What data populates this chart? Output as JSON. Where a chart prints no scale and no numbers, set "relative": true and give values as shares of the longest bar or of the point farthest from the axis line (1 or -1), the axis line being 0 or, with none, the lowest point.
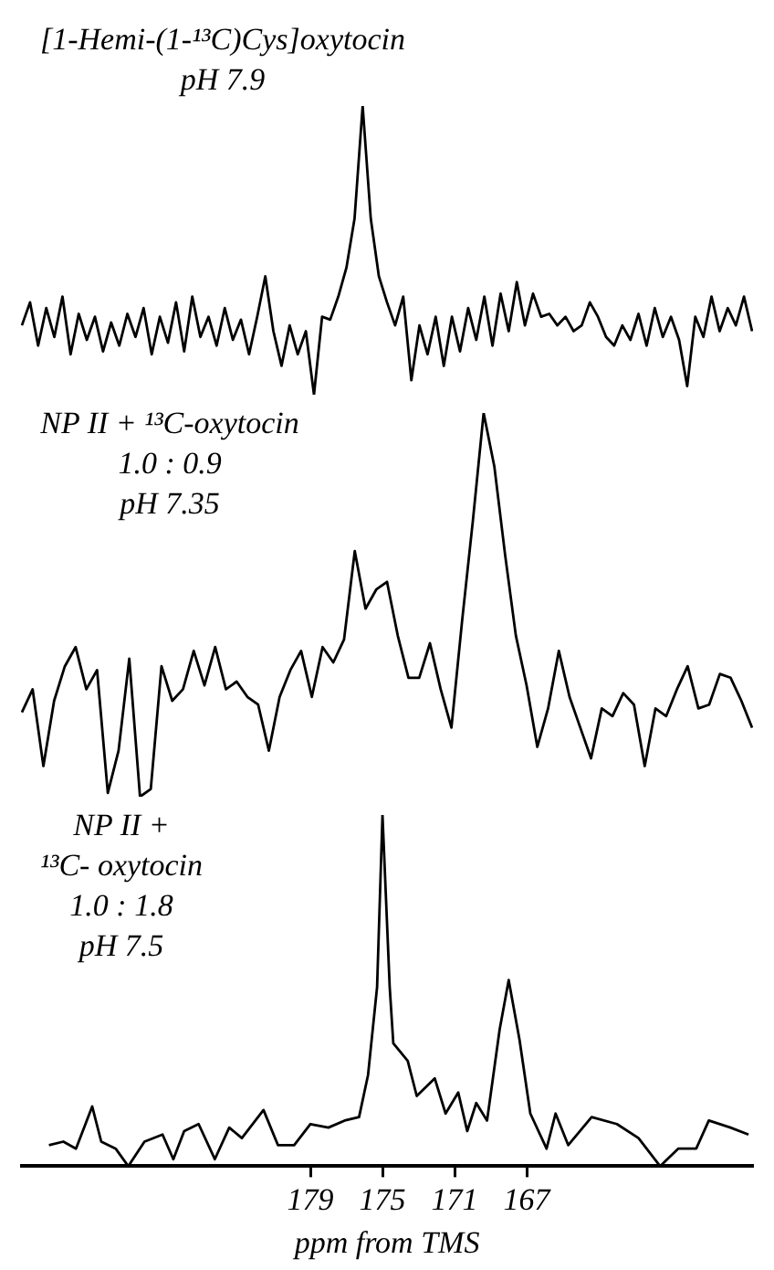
{
  "chart_data": [
    {
      "type": "line",
      "annotations": [
        "[1-Hemi-(1-¹³C)Cys]oxytocin",
        "pH 7.9"
      ],
      "relative": true,
      "marker": "none",
      "tick_labels": false,
      "categories": [
        null,
        null,
        null,
        null,
        null,
        null,
        null,
        null,
        null,
        null,
        null,
        null,
        null,
        null,
        null,
        null,
        null,
        null,
        null,
        null,
        null,
        null,
        null,
        null,
        null,
        null,
        null,
        null,
        null,
        null,
        null,
        null,
        null,
        null,
        null,
        null,
        null,
        null,
        null,
        null,
        null,
        null,
        null,
        null,
        null,
        null,
        null,
        null,
        null,
        null,
        null,
        null,
        null,
        null,
        null,
        null,
        null,
        null,
        null,
        null,
        null,
        null,
        null,
        null,
        null,
        null,
        null,
        null,
        null,
        null,
        null,
        null,
        null,
        null,
        null,
        null,
        null,
        null,
        null,
        null,
        null,
        null,
        null,
        null,
        null,
        null,
        null,
        null,
        null,
        null,
        null
      ],
      "series": [
        {
          "color": "#000000",
          "values": [
            0.24,
            0.32,
            0.17,
            0.3,
            0.2,
            0.34,
            0.14,
            0.28,
            0.19,
            0.27,
            0.15,
            0.25,
            0.17,
            0.28,
            0.2,
            0.3,
            0.14,
            0.27,
            0.18,
            0.32,
            0.15,
            0.34,
            0.2,
            0.27,
            0.17,
            0.3,
            0.19,
            0.26,
            0.14,
            0.27,
            0.41,
            0.22,
            0.1,
            0.24,
            0.14,
            0.22,
            0,
            0.27,
            0.26,
            0.34,
            0.44,
            0.61,
            1,
            0.61,
            0.41,
            0.32,
            0.24,
            0.34,
            0.05,
            0.24,
            0.14,
            0.27,
            0.1,
            0.27,
            0.15,
            0.3,
            0.19,
            0.34,
            0.17,
            0.35,
            0.22,
            0.39,
            0.24,
            0.35,
            0.27,
            0.28,
            0.24,
            0.27,
            0.22,
            0.24,
            0.32,
            0.27,
            0.2,
            0.17,
            0.24,
            0.19,
            0.28,
            0.17,
            0.3,
            0.2,
            0.27,
            0.19,
            0.03,
            0.27,
            0.2,
            0.34,
            0.22,
            0.3,
            0.24,
            0.34,
            0.22
          ]
        }
      ]
    },
    {
      "type": "line",
      "annotations": [
        "NP II + ¹³C-oxytocin",
        "1.0 : 0.9",
        "pH 7.35"
      ],
      "relative": true,
      "marker": "none",
      "tick_labels": false,
      "categories": [
        null,
        null,
        null,
        null,
        null,
        null,
        null,
        null,
        null,
        null,
        null,
        null,
        null,
        null,
        null,
        null,
        null,
        null,
        null,
        null,
        null,
        null,
        null,
        null,
        null,
        null,
        null,
        null,
        null,
        null,
        null,
        null,
        null,
        null,
        null,
        null,
        null,
        null,
        null,
        null,
        null,
        null,
        null,
        null,
        null,
        null,
        null,
        null,
        null,
        null,
        null,
        null,
        null,
        null,
        null,
        null,
        null,
        null,
        null,
        null,
        null,
        null,
        null,
        null,
        null,
        null,
        null,
        null,
        null
      ],
      "series": [
        {
          "color": "#000000",
          "values": [
            0.22,
            0.28,
            0.08,
            0.25,
            0.34,
            0.39,
            0.28,
            0.33,
            0.01,
            0.12,
            0.36,
            0,
            0.02,
            0.34,
            0.25,
            0.28,
            0.38,
            0.29,
            0.39,
            0.28,
            0.3,
            0.26,
            0.24,
            0.12,
            0.26,
            0.33,
            0.38,
            0.26,
            0.39,
            0.35,
            0.41,
            0.64,
            0.49,
            0.54,
            0.56,
            0.42,
            0.31,
            0.31,
            0.4,
            0.28,
            0.18,
            0.46,
            0.72,
            1,
            0.86,
            0.63,
            0.42,
            0.29,
            0.13,
            0.23,
            0.38,
            0.26,
            0.18,
            0.1,
            0.23,
            0.21,
            0.27,
            0.24,
            0.08,
            0.23,
            0.21,
            0.28,
            0.34,
            0.23,
            0.24,
            0.32,
            0.31,
            0.25,
            0.18
          ]
        }
      ]
    },
    {
      "type": "line",
      "annotations": [
        "NP II +",
        "¹³C- oxytocin",
        "1.0 : 1.8",
        "pH 7.5"
      ],
      "relative": true,
      "marker": "none",
      "tick_labels": "x",
      "xlim": [
        195,
        154.5
      ],
      "xticks": [
        179,
        175,
        171,
        167
      ],
      "xlabel": "ppm from TMS",
      "x": [
        193.5,
        192.7,
        192.0,
        191.1,
        190.6,
        189.8,
        189.1,
        188.2,
        187.2,
        186.6,
        186.0,
        185.2,
        184.3,
        183.5,
        182.8,
        181.6,
        180.8,
        179.9,
        179.0,
        178.0,
        177.1,
        176.3,
        175.8,
        175.3,
        175.0,
        174.6,
        174.4,
        173.6,
        173.1,
        172.1,
        171.5,
        170.8,
        170.3,
        169.8,
        169.2,
        168.5,
        168.0,
        167.4,
        166.8,
        165.9,
        165.4,
        164.7,
        163.4,
        162.0,
        160.8,
        159.6,
        158.6,
        157.6,
        156.9,
        155.7,
        154.7
      ],
      "series": [
        {
          "color": "#000000",
          "values": [
            0.06,
            0.07,
            0.05,
            0.17,
            0.07,
            0.05,
            0,
            0.07,
            0.09,
            0.02,
            0.1,
            0.12,
            0.02,
            0.11,
            0.08,
            0.16,
            0.06,
            0.06,
            0.12,
            0.11,
            0.13,
            0.14,
            0.26,
            0.51,
            1,
            0.51,
            0.35,
            0.3,
            0.2,
            0.25,
            0.15,
            0.21,
            0.1,
            0.18,
            0.13,
            0.39,
            0.53,
            0.36,
            0.15,
            0.05,
            0.15,
            0.06,
            0.14,
            0.12,
            0.08,
            0,
            0.05,
            0.05,
            0.13,
            0.11,
            0.09
          ]
        }
      ]
    }
  ]
}
